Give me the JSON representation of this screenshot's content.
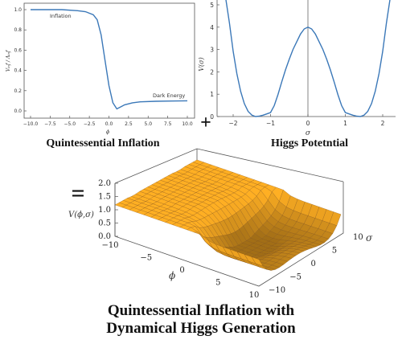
{
  "chart_data": [
    {
      "type": "line",
      "title": "Quintessential Inflation",
      "xlabel": "ϕ",
      "ylabel": "Vᵢₙf / Λᵢₙf",
      "xlim": [
        -10,
        10
      ],
      "ylim": [
        0,
        1.1
      ],
      "xticks": [
        "−10.0",
        "−7.5",
        "−5.0",
        "−2.5",
        "0.0",
        "2.5",
        "5.0",
        "7.5",
        "10.0"
      ],
      "yticks": [
        "0.0",
        "0.2",
        "0.4",
        "0.6",
        "0.8",
        "1.0"
      ],
      "annotations": [
        "Inflation",
        "Dark Energy"
      ],
      "x": [
        -10,
        -8,
        -6,
        -4,
        -3,
        -2,
        -1.5,
        -1,
        -0.5,
        0,
        0.5,
        1,
        1.5,
        2,
        3,
        4,
        6,
        8,
        10
      ],
      "y": [
        1.0,
        1.0,
        1.0,
        0.99,
        0.98,
        0.95,
        0.9,
        0.75,
        0.5,
        0.25,
        0.08,
        0.02,
        0.04,
        0.06,
        0.08,
        0.09,
        0.095,
        0.098,
        0.1
      ],
      "color": "#3b78b8"
    },
    {
      "type": "line",
      "title": "Higgs Potetntial",
      "xlabel": "σ",
      "ylabel": "V(σ)",
      "xlim": [
        -2.5,
        2.5
      ],
      "ylim": [
        0,
        5
      ],
      "xticks": [
        "−2",
        "−1",
        "0",
        "1",
        "2"
      ],
      "yticks": [
        "0",
        "1",
        "2",
        "3",
        "4",
        "5"
      ],
      "x": [
        -2.2,
        -2.1,
        -2.0,
        -1.9,
        -1.8,
        -1.7,
        -1.6,
        -1.5,
        -1.4,
        -1.3,
        -1.2,
        -1.1,
        -1.0,
        -0.9,
        -0.8,
        -0.7,
        -0.6,
        -0.5,
        -0.4,
        -0.3,
        -0.2,
        -0.1,
        0,
        0.1,
        0.2,
        0.3,
        0.4,
        0.5,
        0.6,
        0.7,
        0.8,
        0.9,
        1.0,
        1.1,
        1.2,
        1.3,
        1.4,
        1.5,
        1.6,
        1.7,
        1.8,
        1.9,
        2.0,
        2.1,
        2.2
      ],
      "y": [
        5.62,
        4.18,
        2.92,
        1.92,
        1.13,
        0.58,
        0.23,
        0.06,
        0.0,
        0.02,
        0.06,
        0.12,
        0.18,
        0.49,
        0.99,
        1.55,
        2.09,
        2.57,
        3.0,
        3.35,
        3.69,
        3.92,
        4.0,
        3.92,
        3.69,
        3.35,
        3.0,
        2.57,
        2.09,
        1.55,
        0.99,
        0.49,
        0.18,
        0.12,
        0.06,
        0.02,
        0.0,
        0.06,
        0.23,
        0.58,
        1.13,
        1.92,
        2.92,
        4.18,
        5.62
      ],
      "color": "#3b78b8"
    },
    {
      "type": "surface",
      "title": "Quintessential Inflation with Dynamical Higgs Generation",
      "zlabel": "V(ϕ,σ)",
      "xlabel": "ϕ",
      "ylabel": "σ",
      "xticks": [
        "−10",
        "−5",
        "0",
        "5",
        "10"
      ],
      "yticks": [
        "−10",
        "−5",
        "0",
        "5",
        "10"
      ],
      "zticks": [
        "0.0",
        "0.5",
        "1.0",
        "1.5",
        "2.0"
      ],
      "xlim": [
        -10,
        10
      ],
      "ylim": [
        -10,
        10
      ],
      "zlim": [
        0,
        2
      ],
      "color": "#f5a623"
    }
  ],
  "captions": {
    "plot1": "Quintessential Inflation",
    "plot2": "Higgs Potetntial",
    "bottom_line1": "Quintessential Inflation with",
    "bottom_line2": "Dynamical Higgs Generation"
  },
  "symbols": {
    "plus": "+",
    "equals": "="
  }
}
